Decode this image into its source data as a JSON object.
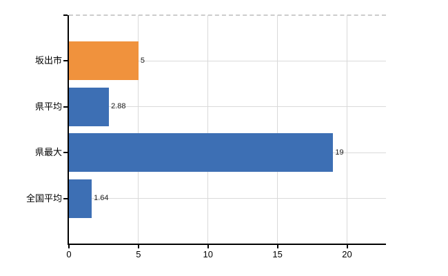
{
  "chart_data": {
    "type": "bar",
    "orientation": "horizontal",
    "title": "",
    "xlabel": "",
    "ylabel": "",
    "categories": [
      "坂出市",
      "県平均",
      "県最大",
      "全国平均"
    ],
    "values": [
      5,
      2.88,
      19,
      1.64
    ],
    "value_labels": [
      "5",
      "2.88",
      "19",
      "1.64"
    ],
    "bar_colors": [
      "#f0923d",
      "#3d6fb4",
      "#3d6fb4",
      "#3d6fb4"
    ],
    "x_ticks": [
      0,
      5,
      10,
      15,
      20
    ],
    "x_tick_labels": [
      "0",
      "5",
      "10",
      "15",
      "20"
    ],
    "xlim": [
      0,
      22.8
    ],
    "grid": true,
    "legend": "none",
    "highlight_category": "坂出市",
    "colors": {
      "highlight_bar": "#f0923d",
      "default_bar": "#3d6fb4",
      "gridline": "#d9d9d9",
      "axis": "#000000",
      "text": "#000000",
      "background": "#ffffff",
      "top_border_dashed": "#cccccc"
    }
  }
}
